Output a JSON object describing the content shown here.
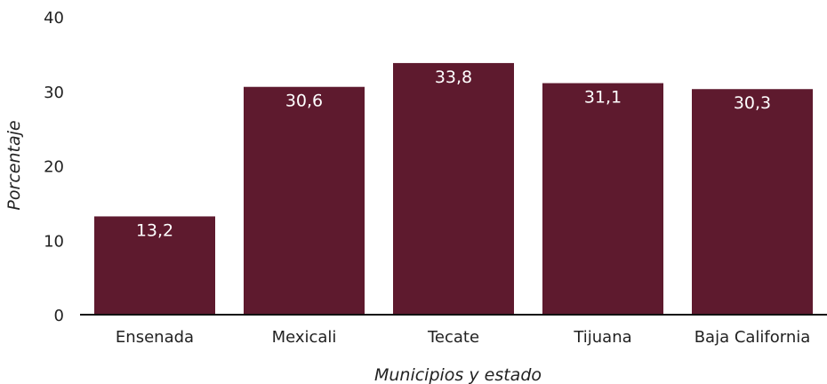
{
  "chart_data": {
    "type": "bar",
    "title": "",
    "xlabel": "Municipios y estado",
    "ylabel": "Porcentaje",
    "categories": [
      "Ensenada",
      "Mexicali",
      "Tecate",
      "Tijuana",
      "Baja California"
    ],
    "values": [
      13.2,
      30.6,
      33.8,
      31.1,
      30.3
    ],
    "value_labels": [
      "13,2",
      "30,6",
      "33,8",
      "31,1",
      "30,3"
    ],
    "ylim": [
      0,
      40
    ],
    "yticks": [
      0,
      10,
      20,
      30,
      40
    ],
    "grid": false,
    "legend": "none",
    "bar_color": "#5e1a2e",
    "label_color": "#ffffff"
  }
}
